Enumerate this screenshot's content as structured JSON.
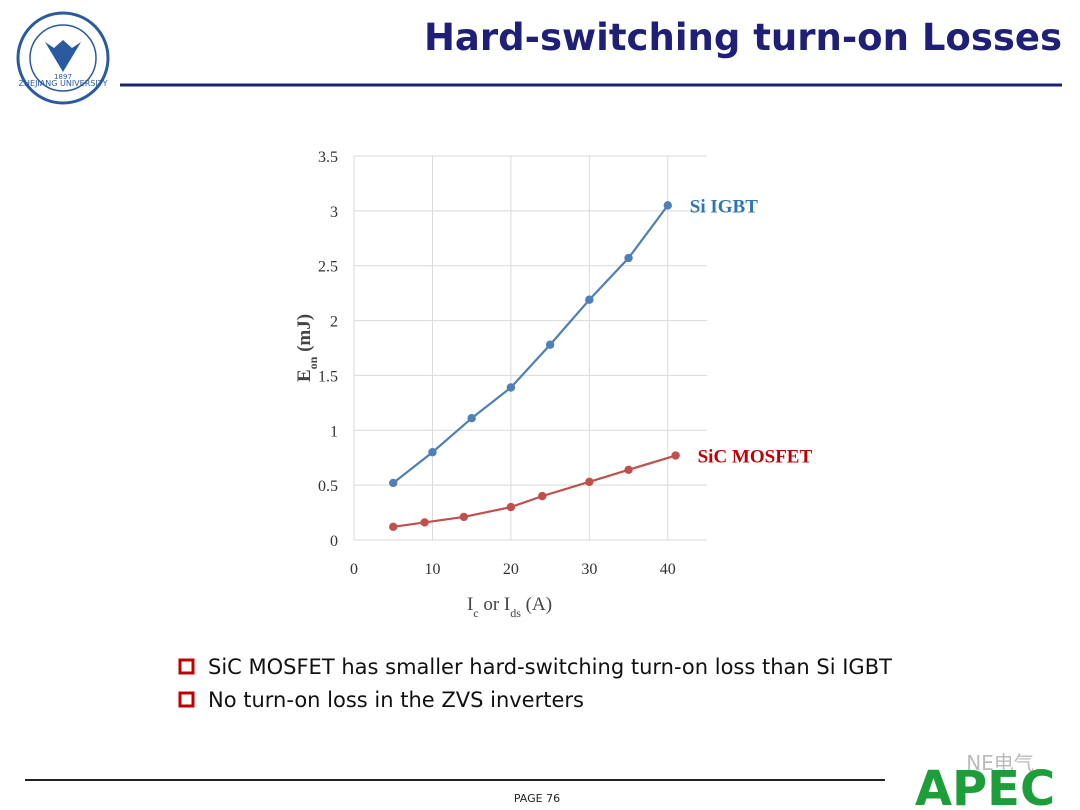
{
  "header": {
    "title": "Hard-switching turn-on Losses",
    "logo_text": "ZHEJIANG UNIVERSITY",
    "logo_year": "1897"
  },
  "chart_data": {
    "type": "line",
    "y_label_parts": [
      "E",
      "on",
      " (mJ)"
    ],
    "x_label_parts": [
      "I",
      "c",
      " or I",
      "ds",
      " (A)"
    ],
    "xlim": [
      0,
      45
    ],
    "xticks": [
      0,
      10,
      20,
      30,
      40
    ],
    "ylim": [
      0,
      3.5
    ],
    "yticks": [
      0,
      0.5,
      1,
      {
        "value": 1.5,
        "label": "1.5"
      },
      2,
      2.5,
      3,
      3.5
    ],
    "grid": true,
    "series": [
      {
        "name": "Si IGBT",
        "color": "#4f7fb8",
        "label_color": "#2e75b6",
        "x": [
          5,
          10,
          15,
          20,
          25,
          30,
          35,
          40
        ],
        "values": [
          0.52,
          0.8,
          1.11,
          1.39,
          1.78,
          2.19,
          2.57,
          3.05
        ]
      },
      {
        "name": "SiC MOSFET",
        "color": "#c0504d",
        "label_color": "#c00000",
        "x": [
          5,
          9,
          14,
          20,
          24,
          30,
          35,
          41
        ],
        "values": [
          0.12,
          0.16,
          0.21,
          0.3,
          0.4,
          0.53,
          0.64,
          0.77
        ]
      }
    ]
  },
  "bullets": [
    "SiC MOSFET has smaller hard-switching turn-on loss than Si IGBT",
    "No turn-on loss in the ZVS inverters"
  ],
  "footer": {
    "page": "PAGE 76",
    "brand": "APEC",
    "watermark": "NE电气"
  }
}
